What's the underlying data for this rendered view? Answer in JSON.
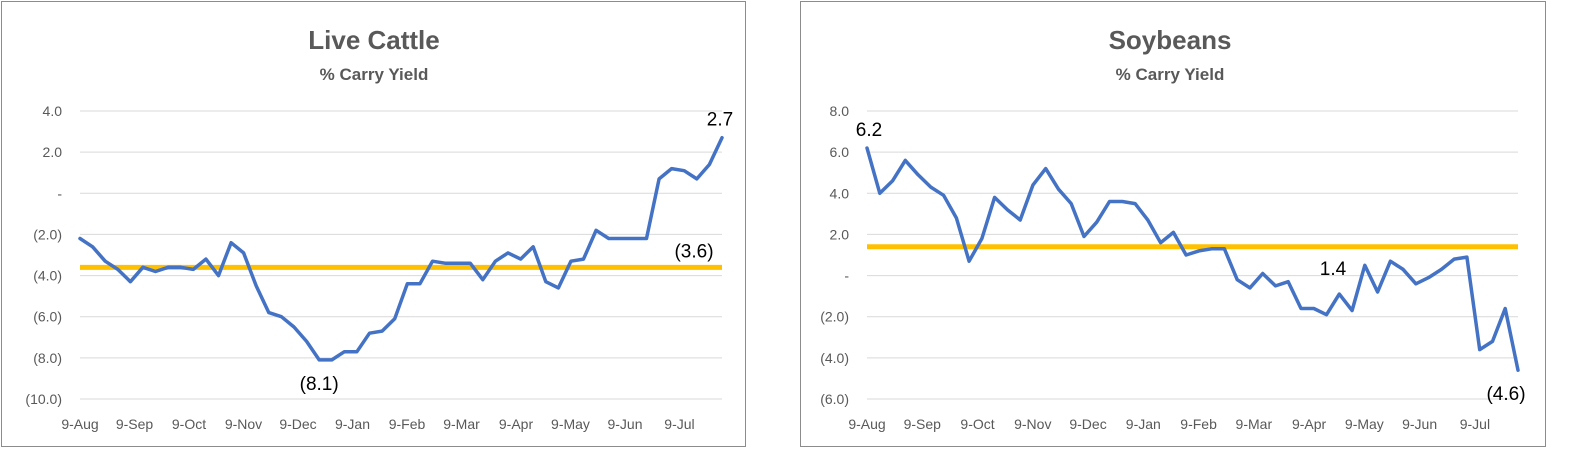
{
  "chart_data": [
    {
      "type": "line",
      "title": "Live Cattle",
      "subtitle": "% Carry Yield",
      "ylim": [
        -10,
        4
      ],
      "yticks": [
        {
          "value": 4,
          "label": "4.0"
        },
        {
          "value": 2,
          "label": "2.0"
        },
        {
          "value": 0,
          "label": "-"
        },
        {
          "value": -2,
          "label": "(2.0)"
        },
        {
          "value": -4,
          "label": "(4.0)"
        },
        {
          "value": -6,
          "label": "(6.0)"
        },
        {
          "value": -8,
          "label": "(8.0)"
        },
        {
          "value": -10,
          "label": "(10.0)"
        }
      ],
      "xtick_labels": [
        "9-Aug",
        "9-Sep",
        "9-Oct",
        "9-Nov",
        "9-Dec",
        "9-Jan",
        "9-Feb",
        "9-Mar",
        "9-Apr",
        "9-May",
        "9-Jun",
        "9-Jul"
      ],
      "grid": true,
      "series": [
        {
          "values": [
            -2.2,
            -2.6,
            -3.3,
            -3.7,
            -4.3,
            -3.6,
            -3.8,
            -3.6,
            -3.6,
            -3.7,
            -3.2,
            -4.0,
            -2.4,
            -2.9,
            -4.5,
            -5.8,
            -6.0,
            -6.5,
            -7.2,
            -8.1,
            -8.1,
            -7.7,
            -7.7,
            -6.8,
            -6.7,
            -6.1,
            -4.4,
            -4.4,
            -3.3,
            -3.4,
            -3.4,
            -3.4,
            -4.2,
            -3.3,
            -2.9,
            -3.2,
            -2.6,
            -4.3,
            -4.6,
            -3.3,
            -3.2,
            -1.8,
            -2.2,
            -2.2,
            -2.2,
            -2.2,
            0.7,
            1.2,
            1.1,
            0.7,
            1.4,
            2.7
          ]
        }
      ],
      "average": -3.6,
      "annotations": [
        {
          "label": "2.7",
          "point": "last"
        },
        {
          "label": "(8.1)",
          "point": "min"
        },
        {
          "label": "(3.6)",
          "point": "average"
        }
      ]
    },
    {
      "type": "line",
      "title": "Soybeans",
      "subtitle": "% Carry Yield",
      "ylim": [
        -6,
        8
      ],
      "yticks": [
        {
          "value": 8,
          "label": "8.0"
        },
        {
          "value": 6,
          "label": "6.0"
        },
        {
          "value": 4,
          "label": "4.0"
        },
        {
          "value": 2,
          "label": "2.0"
        },
        {
          "value": 0,
          "label": "-"
        },
        {
          "value": -2,
          "label": "(2.0)"
        },
        {
          "value": -4,
          "label": "(4.0)"
        },
        {
          "value": -6,
          "label": "(6.0)"
        }
      ],
      "xtick_labels": [
        "9-Aug",
        "9-Sep",
        "9-Oct",
        "9-Nov",
        "9-Dec",
        "9-Jan",
        "9-Feb",
        "9-Mar",
        "9-Apr",
        "9-May",
        "9-Jun",
        "9-Jul"
      ],
      "grid": true,
      "series": [
        {
          "values": [
            6.2,
            4.0,
            4.6,
            5.6,
            4.9,
            4.3,
            3.9,
            2.8,
            0.7,
            1.8,
            3.8,
            3.2,
            2.7,
            4.4,
            5.2,
            4.2,
            3.5,
            1.9,
            2.6,
            3.6,
            3.6,
            3.5,
            2.7,
            1.6,
            2.1,
            1.0,
            1.2,
            1.3,
            1.3,
            -0.2,
            -0.6,
            0.1,
            -0.5,
            -0.3,
            -1.6,
            -1.6,
            -1.9,
            -0.9,
            -1.7,
            0.5,
            -0.8,
            0.7,
            0.3,
            -0.4,
            -0.1,
            0.3,
            0.8,
            0.9,
            -3.6,
            -3.2,
            -1.6,
            -4.6
          ]
        }
      ],
      "average": 1.4,
      "annotations": [
        {
          "label": "6.2",
          "point": "first"
        },
        {
          "label": "(4.6)",
          "point": "last"
        },
        {
          "label": "1.4",
          "point": "average"
        }
      ]
    }
  ]
}
